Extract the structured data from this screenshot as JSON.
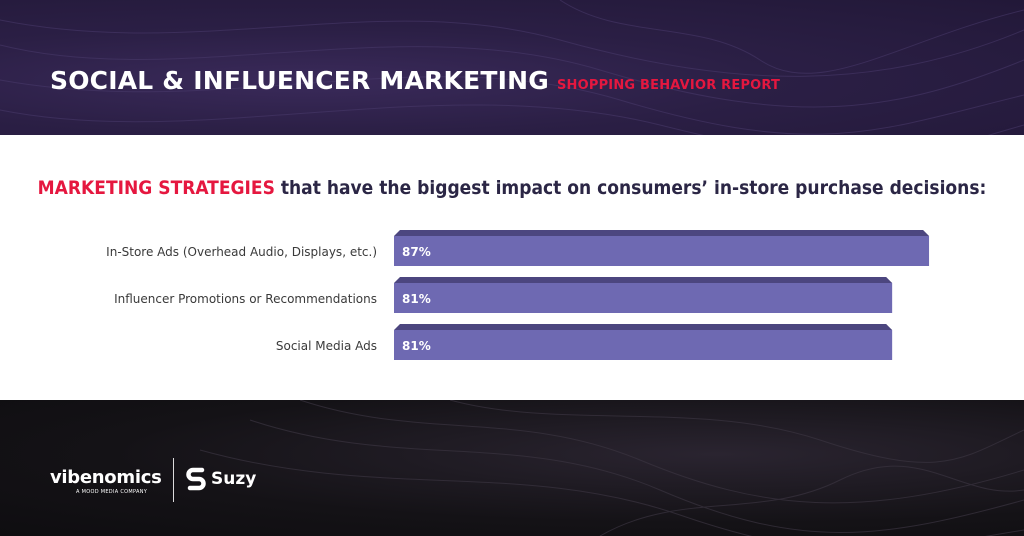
{
  "header": {
    "title": "SOCIAL & INFLUENCER MARKETING",
    "subtitle": "SHOPPING BEHAVIOR REPORT"
  },
  "headline": {
    "accent": "MARKETING STRATEGIES",
    "rest": " that have the biggest impact on consumers’ in-store purchase decisions:"
  },
  "colors": {
    "accent": "#e5173f",
    "bar_face": "#6e69b2",
    "bar_top": "#4c467f",
    "header_bg": "#2b1f45",
    "footer_bg": "#141216"
  },
  "chart_data": {
    "type": "bar",
    "orientation": "horizontal",
    "categories": [
      "In-Store Ads (Overhead Audio, Displays, etc.)",
      "Influencer Promotions or Recommendations",
      "Social Media Ads"
    ],
    "values": [
      87,
      81,
      81
    ],
    "value_labels": [
      "87%",
      "81%",
      "81%"
    ],
    "unit": "%",
    "xlim": [
      0,
      100
    ],
    "grid": false,
    "legend": "none"
  },
  "footer": {
    "brand1": "vibenomics",
    "brand1_tagline": "A MOOD MEDIA COMPANY",
    "brand2": "Suzy"
  }
}
